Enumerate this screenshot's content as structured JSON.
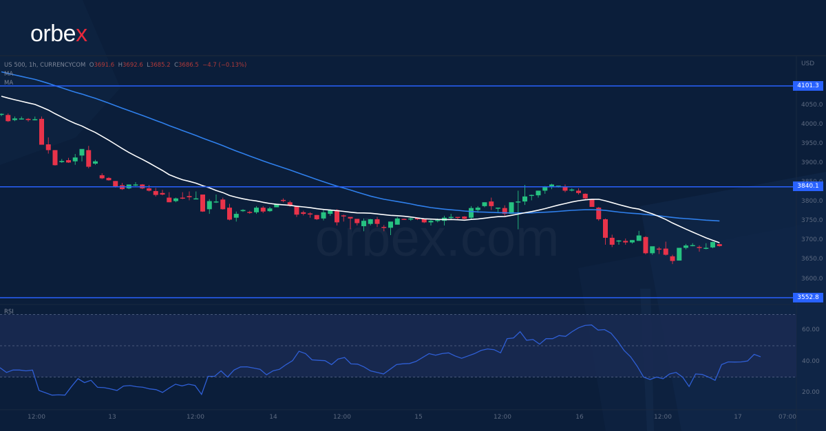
{
  "brand": {
    "logo_text_main": "orbe",
    "logo_text_accent": "x",
    "watermark": "orbex.com",
    "accent_color": "#e8293b"
  },
  "legend": {
    "symbol_line": "US 500, 1h, CURRENCYCOM",
    "open_label": "O",
    "open": "3691.6",
    "high_label": "H",
    "high": "3692.6",
    "low_label": "L",
    "low": "3685.2",
    "close_label": "C",
    "close": "3686.5",
    "change": "−4.7 (−0.13%)",
    "ma1": "MA",
    "ma2": "MA"
  },
  "price_axis": {
    "currency": "USD",
    "ticks": [
      "4050.0",
      "4000.0",
      "3950.0",
      "3900.0",
      "3850.0",
      "3800.0",
      "3750.0",
      "3700.0",
      "3650.0",
      "3600.0"
    ],
    "levels": [
      "4101.3",
      "3840.1",
      "3552.8"
    ]
  },
  "rsi": {
    "label": "RSI",
    "ticks": [
      "60.00",
      "40.00",
      "20.00"
    ]
  },
  "time_axis": {
    "ticks": [
      "12:00",
      "13",
      "12:00",
      "14",
      "12:00",
      "15",
      "12:00",
      "16",
      "12:00",
      "17",
      "07:00"
    ]
  },
  "colors": {
    "background": "#0b1e3a",
    "up": "#26c281",
    "down": "#e8334a",
    "ma_fast": "#ffffff",
    "ma_slow": "#2f80ed",
    "level_line": "#2962ff",
    "rsi_line": "#2f5fd6",
    "rsi_band": "#1a2a52"
  },
  "chart_data": [
    {
      "type": "candlestick",
      "title": "US 500, 1h, CURRENCYCOM",
      "xlabel": "",
      "ylabel": "USD",
      "ylim": [
        3540,
        4110
      ],
      "x_ticks": [
        "12:00",
        "13",
        "12:00",
        "14",
        "12:00",
        "15",
        "12:00",
        "16",
        "12:00",
        "17",
        "07:00"
      ],
      "horizontal_levels": [
        4101.3,
        3840.1,
        3552.8
      ],
      "last_bar": {
        "open": 3691.6,
        "high": 3692.6,
        "low": 3685.2,
        "close": 3686.5,
        "change": -4.7,
        "change_pct": -0.13
      },
      "series": [
        {
          "name": "US 500 (OHLC, approx.)",
          "ohlc": [
            [
              4027,
              4030,
              4023,
              4029
            ],
            [
              4026,
              4030,
              4008,
              4010
            ],
            [
              4013,
              4022,
              4010,
              4017
            ],
            [
              4016,
              4022,
              4014,
              4017
            ],
            [
              4016,
              4018,
              4009,
              4013
            ],
            [
              4015,
              4022,
              4012,
              4015
            ],
            [
              4016,
              4022,
              3950,
              3949
            ],
            [
              3950,
              3968,
              3926,
              3935
            ],
            [
              3935,
              3935,
              3895,
              3896
            ],
            [
              3904,
              3912,
              3902,
              3907
            ],
            [
              3909,
              3915,
              3902,
              3903
            ],
            [
              3906,
              3925,
              3897,
              3916
            ],
            [
              3921,
              3926,
              3906,
              3938
            ],
            [
              3935,
              3946,
              3888,
              3892
            ],
            [
              3900,
              3910,
              3897,
              3906
            ],
            [
              3870,
              3875,
              3860,
              3862
            ],
            [
              3863,
              3865,
              3856,
              3857
            ],
            [
              3855,
              3855,
              3838,
              3839
            ],
            [
              3844,
              3850,
              3832,
              3834
            ],
            [
              3836,
              3846,
              3834,
              3846
            ],
            [
              3846,
              3852,
              3842,
              3846
            ],
            [
              3846,
              3847,
              3834,
              3836
            ],
            [
              3836,
              3845,
              3828,
              3830
            ],
            [
              3829,
              3837,
              3815,
              3819
            ],
            [
              3824,
              3832,
              3818,
              3820
            ],
            [
              3812,
              3826,
              3800,
              3800
            ],
            [
              3803,
              3812,
              3800,
              3810
            ],
            [
              3812,
              3826,
              3808,
              3810
            ],
            [
              3816,
              3828,
              3805,
              3813
            ],
            [
              3808,
              3828,
              3808,
              3810
            ],
            [
              3820,
              3820,
              3775,
              3776
            ],
            [
              3782,
              3808,
              3770,
              3803
            ],
            [
              3802,
              3820,
              3798,
              3802
            ],
            [
              3807,
              3812,
              3781,
              3782
            ],
            [
              3786,
              3796,
              3753,
              3755
            ],
            [
              3760,
              3776,
              3750,
              3770
            ],
            [
              3777,
              3782,
              3775,
              3780
            ],
            [
              3775,
              3778,
              3770,
              3774
            ],
            [
              3774,
              3790,
              3770,
              3786
            ],
            [
              3786,
              3790,
              3772,
              3776
            ],
            [
              3777,
              3788,
              3775,
              3784
            ],
            [
              3787,
              3796,
              3787,
              3795
            ],
            [
              3806,
              3810,
              3800,
              3805
            ],
            [
              3800,
              3804,
              3788,
              3791
            ],
            [
              3790,
              3790,
              3762,
              3768
            ],
            [
              3774,
              3778,
              3766,
              3770
            ],
            [
              3771,
              3774,
              3760,
              3770
            ],
            [
              3767,
              3767,
              3754,
              3756
            ],
            [
              3758,
              3782,
              3753,
              3774
            ],
            [
              3770,
              3782,
              3765,
              3779
            ],
            [
              3780,
              3782,
              3740,
              3748
            ],
            [
              3766,
              3768,
              3750,
              3764
            ],
            [
              3762,
              3760,
              3730,
              3758
            ],
            [
              3757,
              3752,
              3740,
              3746
            ],
            [
              3738,
              3758,
              3725,
              3752
            ],
            [
              3744,
              3757,
              3740,
              3756
            ],
            [
              3756,
              3762,
              3736,
              3744
            ],
            [
              3736,
              3741,
              3725,
              3734
            ],
            [
              3734,
              3744,
              3715,
              3750
            ],
            [
              3742,
              3762,
              3742,
              3758
            ],
            [
              3757,
              3758,
              3755,
              3756
            ],
            [
              3756,
              3760,
              3752,
              3758
            ],
            [
              3760,
              3760,
              3754,
              3756
            ],
            [
              3757,
              3757,
              3746,
              3748
            ],
            [
              3748,
              3755,
              3740,
              3752
            ],
            [
              3753,
              3758,
              3748,
              3754
            ],
            [
              3752,
              3765,
              3740,
              3760
            ],
            [
              3760,
              3770,
              3757,
              3762
            ],
            [
              3762,
              3760,
              3755,
              3760
            ],
            [
              3763,
              3764,
              3756,
              3757
            ],
            [
              3760,
              3790,
              3755,
              3785
            ],
            [
              3780,
              3790,
              3773,
              3786
            ],
            [
              3790,
              3800,
              3787,
              3800
            ],
            [
              3802,
              3812,
              3780,
              3790
            ],
            [
              3786,
              3786,
              3772,
              3786
            ],
            [
              3785,
              3792,
              3765,
              3770
            ],
            [
              3770,
              3800,
              3770,
              3800
            ],
            [
              3800,
              3830,
              3730,
              3802
            ],
            [
              3802,
              3845,
              3793,
              3815
            ],
            [
              3817,
              3820,
              3805,
              3819
            ],
            [
              3818,
              3830,
              3812,
              3830
            ],
            [
              3830,
              3842,
              3822,
              3840
            ],
            [
              3840,
              3848,
              3834,
              3846
            ],
            [
              3843,
              3842,
              3838,
              3843
            ],
            [
              3839,
              3846,
              3826,
              3830
            ],
            [
              3833,
              3836,
              3828,
              3833
            ],
            [
              3830,
              3836,
              3820,
              3824
            ],
            [
              3822,
              3823,
              3808,
              3810
            ],
            [
              3808,
              3808,
              3790,
              3788
            ],
            [
              3786,
              3788,
              3752,
              3756
            ],
            [
              3756,
              3758,
              3690,
              3708
            ],
            [
              3708,
              3716,
              3684,
              3690
            ],
            [
              3700,
              3702,
              3690,
              3701
            ],
            [
              3700,
              3706,
              3690,
              3696
            ],
            [
              3696,
              3702,
              3693,
              3702
            ],
            [
              3700,
              3726,
              3704,
              3714
            ],
            [
              3710,
              3712,
              3665,
              3668
            ],
            [
              3668,
              3685,
              3664,
              3686
            ],
            [
              3680,
              3684,
              3666,
              3678
            ],
            [
              3680,
              3698,
              3662,
              3664
            ],
            [
              3660,
              3664,
              3640,
              3648
            ],
            [
              3649,
              3680,
              3649,
              3682
            ],
            [
              3682,
              3692,
              3678,
              3688
            ],
            [
              3688,
              3694,
              3686,
              3689
            ],
            [
              3684,
              3688,
              3672,
              3682
            ],
            [
              3682,
              3694,
              3678,
              3682
            ],
            [
              3683,
              3698,
              3681,
              3697
            ],
            [
              3691.6,
              3692.6,
              3685.2,
              3686.5
            ]
          ]
        },
        {
          "name": "MA (fast, white)",
          "values": "smoothed moving average overlay"
        },
        {
          "name": "MA (slow, blue)",
          "values": "smoothed moving average overlay"
        }
      ]
    },
    {
      "type": "line",
      "title": "RSI",
      "ylim": [
        10,
        80
      ],
      "y_ticks": [
        20,
        40,
        60
      ],
      "bands": [
        30,
        50,
        70
      ],
      "series": [
        {
          "name": "RSI",
          "values": [
            36,
            33,
            34.5,
            34.5,
            34,
            34.5,
            21.5,
            20,
            18.5,
            18.7,
            18.5,
            24,
            29,
            26.5,
            28,
            23.5,
            23.3,
            22.5,
            21.5,
            24.3,
            24.6,
            23.9,
            23.5,
            22.5,
            22,
            20.2,
            23,
            25.5,
            24.4,
            25.5,
            24.7,
            19,
            30.5,
            30.5,
            34,
            30,
            34.5,
            36.5,
            36.6,
            35.8,
            35,
            31.5,
            34,
            35,
            38,
            40.5,
            46.5,
            45,
            41,
            40.7,
            40.5,
            38,
            41.5,
            42.5,
            38.4,
            38.3,
            36.5,
            34,
            33,
            32,
            35,
            38,
            38.5,
            38.7,
            40,
            42.5,
            45,
            44,
            45,
            45.5,
            43.5,
            42,
            43.5,
            45,
            47,
            48,
            47.5,
            45.5,
            54.5,
            55,
            59,
            53.5,
            54,
            51,
            54.5,
            54.5,
            56.5,
            56,
            59,
            61.5,
            63,
            63.3,
            60,
            60.3,
            58,
            53,
            47,
            43,
            37,
            30,
            28.5,
            30,
            29,
            32,
            33,
            30,
            24,
            32,
            31.7,
            30,
            28,
            38,
            39.7,
            39.6,
            39.7,
            40.3,
            44.5,
            43
          ]
        }
      ]
    }
  ]
}
